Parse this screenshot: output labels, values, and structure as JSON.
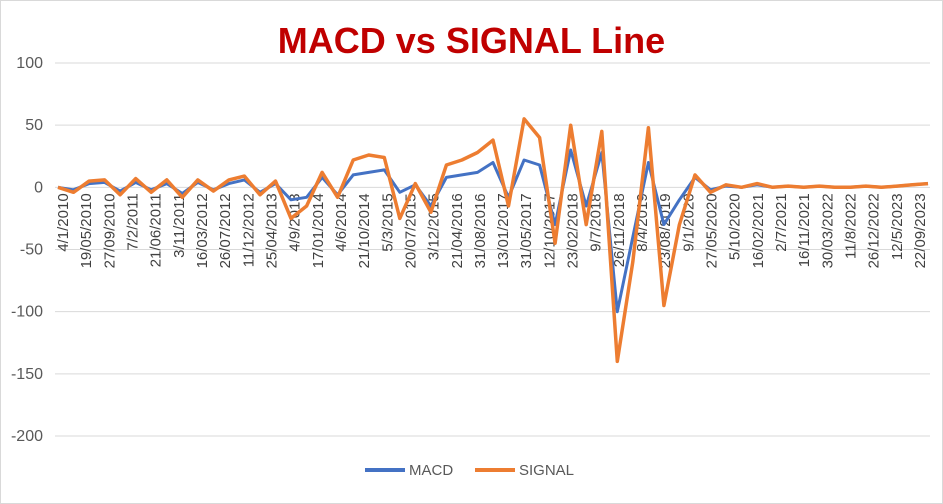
{
  "chart_data": {
    "type": "line",
    "title": "MACD vs SIGNAL Line",
    "xlabel": "",
    "ylabel": "",
    "ylim": [
      -200,
      100
    ],
    "yticks": [
      100,
      50,
      0,
      -50,
      -100,
      -150,
      -200
    ],
    "grid": true,
    "legend_position": "bottom",
    "x_tick_labels": [
      "4/1/2010",
      "19/05/2010",
      "27/09/2010",
      "7/2/2011",
      "21/06/2011",
      "3/11/2011",
      "16/03/2012",
      "26/07/2012",
      "11/12/2012",
      "25/04/2013",
      "4/9/2013",
      "17/01/2014",
      "4/6/2014",
      "21/10/2014",
      "5/3/2015",
      "20/07/2015",
      "3/12/2015",
      "21/04/2016",
      "31/08/2016",
      "13/01/2017",
      "31/05/2017",
      "12/10/2017",
      "23/02/2018",
      "9/7/2018",
      "26/11/2018",
      "8/4/2019",
      "23/08/2019",
      "9/1/2020",
      "27/05/2020",
      "5/10/2020",
      "16/02/2021",
      "2/7/2021",
      "16/11/2021",
      "30/03/2022",
      "11/8/2022",
      "26/12/2022",
      "12/5/2023",
      "22/09/2023"
    ],
    "x_points": [
      "2010-01",
      "2010-04",
      "2010-07",
      "2010-10",
      "2011-01",
      "2011-04",
      "2011-07",
      "2011-10",
      "2012-01",
      "2012-04",
      "2012-07",
      "2012-10",
      "2013-01",
      "2013-04",
      "2013-07",
      "2013-10",
      "2014-01",
      "2014-04",
      "2014-07",
      "2014-10",
      "2015-01",
      "2015-04",
      "2015-07",
      "2015-10",
      "2016-01",
      "2016-04",
      "2016-07",
      "2016-10",
      "2017-01",
      "2017-04",
      "2017-07",
      "2017-10",
      "2018-01",
      "2018-04",
      "2018-07",
      "2018-10",
      "2019-01",
      "2019-04",
      "2019-07",
      "2019-10",
      "2020-01",
      "2020-04",
      "2020-07",
      "2020-10",
      "2021-01",
      "2021-04",
      "2021-07",
      "2021-10",
      "2022-01",
      "2022-04",
      "2022-07",
      "2022-10",
      "2023-01",
      "2023-04",
      "2023-07",
      "2023-10",
      "2023-12"
    ],
    "series": [
      {
        "name": "MACD",
        "color": "#4472c4",
        "values": [
          0,
          -2,
          3,
          4,
          -3,
          4,
          -2,
          3,
          -5,
          4,
          -2,
          3,
          6,
          -4,
          3,
          -10,
          -8,
          8,
          -6,
          10,
          12,
          14,
          -4,
          2,
          -15,
          8,
          10,
          12,
          20,
          -8,
          22,
          18,
          -30,
          30,
          -15,
          28,
          -100,
          -40,
          20,
          -30,
          -10,
          8,
          -2,
          1,
          0,
          2,
          0,
          1,
          0,
          1,
          0,
          0,
          1,
          0,
          1,
          2,
          3
        ],
        "values_note": ""
      },
      {
        "name": "SIGNAL",
        "color": "#ed7d31",
        "values": [
          0,
          -4,
          5,
          6,
          -6,
          7,
          -4,
          6,
          -8,
          6,
          -3,
          6,
          9,
          -6,
          5,
          -25,
          -15,
          12,
          -8,
          22,
          26,
          24,
          -25,
          3,
          -20,
          18,
          22,
          28,
          38,
          -15,
          55,
          40,
          -45,
          50,
          -30,
          45,
          -140,
          -60,
          48,
          -95,
          -30,
          10,
          -4,
          2,
          0,
          3,
          0,
          1,
          0,
          1,
          0,
          0,
          1,
          0,
          1,
          2,
          3
        ]
      }
    ]
  }
}
